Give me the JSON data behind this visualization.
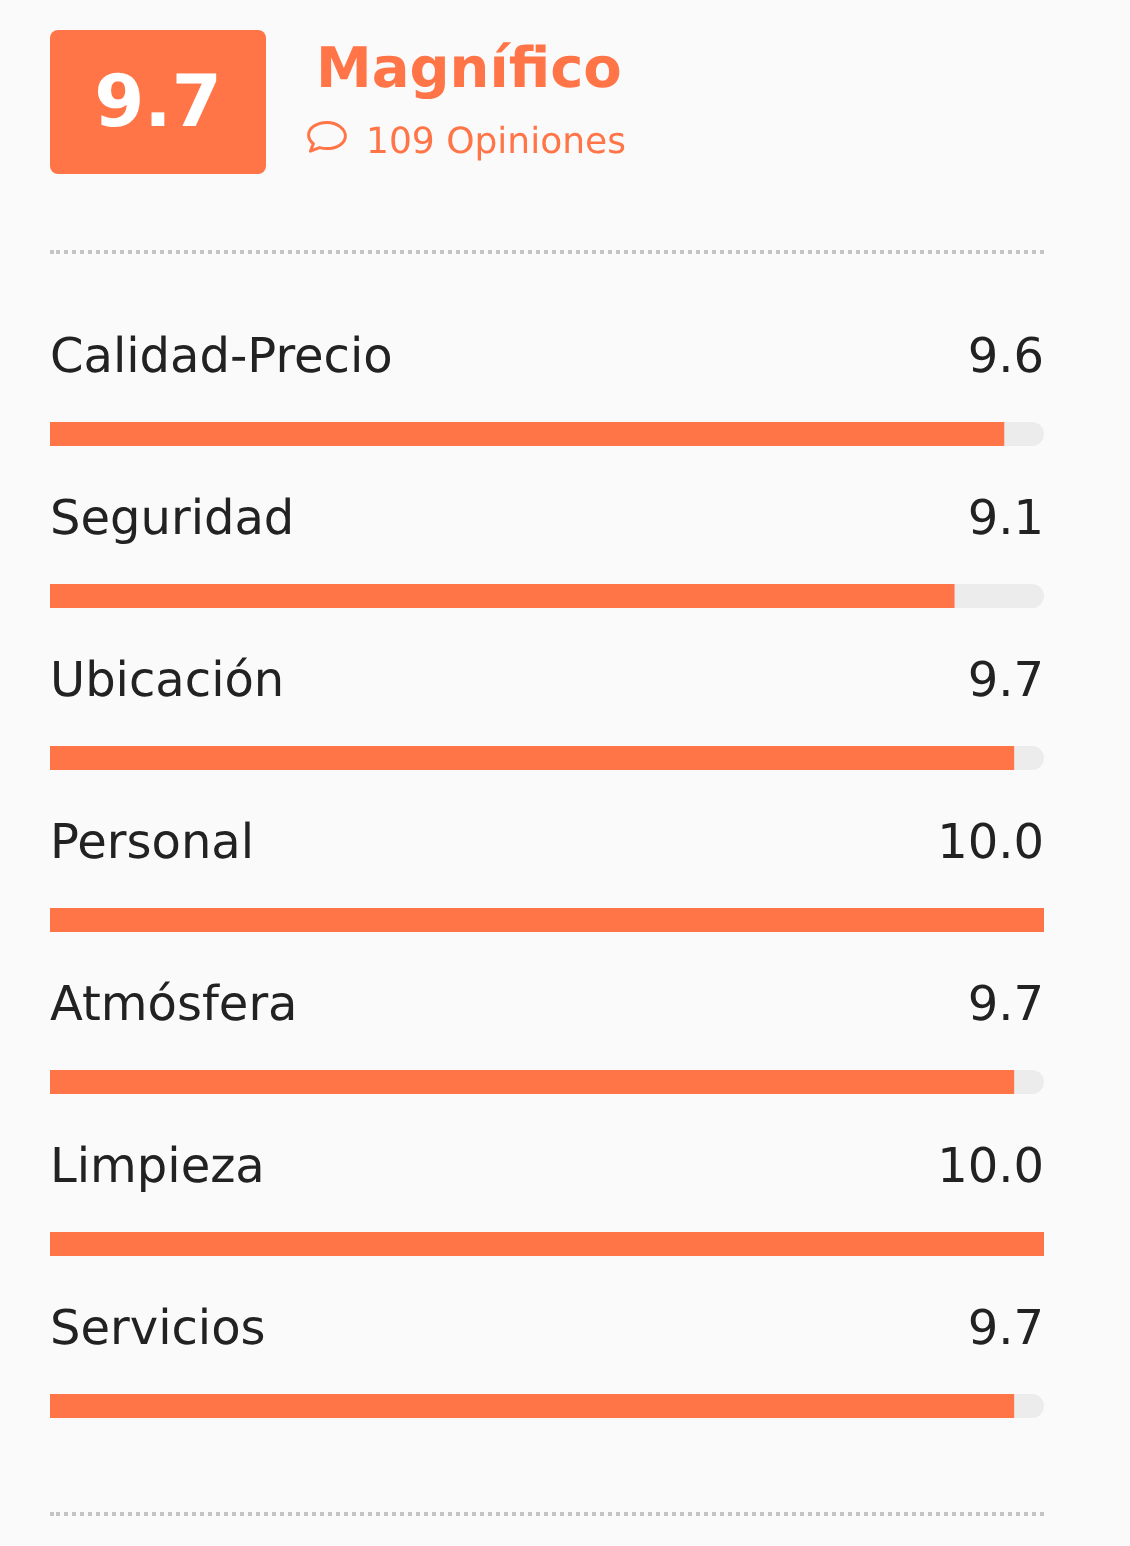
{
  "chart_data": {
    "type": "bar",
    "orientation": "horizontal",
    "title": "Magnífico",
    "subtitle": "109 Opiniones",
    "annotations": [
      "9.7"
    ],
    "categories": [
      "Calidad-Precio",
      "Seguridad",
      "Ubicación",
      "Personal",
      "Atmósfera",
      "Limpieza",
      "Servicios"
    ],
    "values": [
      9.6,
      9.1,
      9.7,
      10,
      9.7,
      10,
      9.7
    ],
    "value_labels": [
      "9.6",
      "9.1",
      "9.7",
      "10.0",
      "9.7",
      "10.0",
      "9.7"
    ],
    "color": "#ff7547",
    "xlim": [
      0,
      10
    ],
    "tick_labels": "y"
  }
}
